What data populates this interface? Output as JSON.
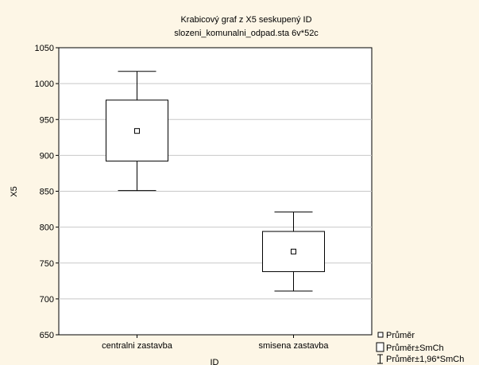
{
  "chart_data": {
    "type": "box",
    "title": "Krabicový graf z X5 seskupený ID",
    "subtitle": "slozeni_komunalni_odpad.sta 6v*52c",
    "xlabel": "ID",
    "ylabel": "X5",
    "ylim": [
      650,
      1050
    ],
    "yticks": [
      650,
      700,
      750,
      800,
      850,
      900,
      950,
      1000,
      1050
    ],
    "grid": true,
    "legend_position": "bottom-right",
    "categories": [
      "centralni zastavba",
      "smisena zastavba"
    ],
    "boxes": [
      {
        "category": "centralni zastavba",
        "mean": 934,
        "box_low": 892,
        "box_high": 977,
        "whisker_low": 851,
        "whisker_high": 1017
      },
      {
        "category": "smisena zastavba",
        "mean": 766,
        "box_low": 738,
        "box_high": 794,
        "whisker_low": 711,
        "whisker_high": 821
      }
    ],
    "legend": [
      "Průměr",
      "Průměr±SmCh",
      "Průměr±1,96*SmCh"
    ],
    "colors": {
      "background": "#fdf6e6",
      "plot_area": "#ffffff",
      "grid": "#c8c8c8",
      "stroke": "#000000"
    }
  }
}
